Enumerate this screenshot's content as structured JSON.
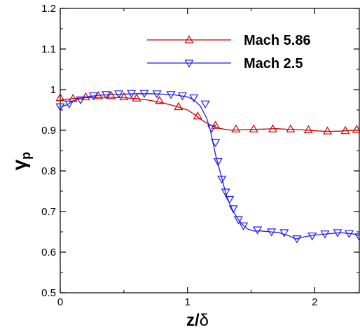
{
  "chart_data": {
    "type": "line",
    "title": "",
    "xlabel_main": "z/",
    "xlabel_symbol": "δ",
    "ylabel_main": "γ",
    "ylabel_sub": "p",
    "xlim": [
      0,
      2.35
    ],
    "ylim": [
      0.5,
      1.2
    ],
    "xticks": [
      0,
      1,
      2
    ],
    "xtick_labels": [
      "0",
      "1",
      "2"
    ],
    "yticks": [
      0.5,
      0.6,
      0.7,
      0.8,
      0.9,
      1.0,
      1.1,
      1.2
    ],
    "ytick_labels": [
      "0.5",
      "0.6",
      "0.7",
      "0.8",
      "0.9",
      "1",
      "1.1",
      "1.2"
    ],
    "grid": false,
    "legend_position": "top-right",
    "series": [
      {
        "name": "Mach 5.86",
        "color": "#cc0000",
        "marker": "triangle-up",
        "x": [
          0.0,
          0.1,
          0.2,
          0.3,
          0.4,
          0.5,
          0.6,
          0.7,
          0.8,
          0.9,
          1.0,
          1.05,
          1.1,
          1.15,
          1.2,
          1.25,
          1.3,
          1.35,
          1.4,
          1.5,
          1.6,
          1.7,
          1.8,
          1.9,
          2.0,
          2.1,
          2.2,
          2.3,
          2.35
        ],
        "y": [
          0.975,
          0.978,
          0.98,
          0.981,
          0.981,
          0.98,
          0.978,
          0.974,
          0.968,
          0.96,
          0.95,
          0.94,
          0.928,
          0.918,
          0.91,
          0.905,
          0.902,
          0.9,
          0.901,
          0.902,
          0.903,
          0.904,
          0.902,
          0.901,
          0.899,
          0.897,
          0.898,
          0.9,
          0.901
        ],
        "markers_x": [
          0.0,
          0.1,
          0.2,
          0.3,
          0.4,
          0.5,
          0.6,
          0.78,
          0.93,
          1.08,
          1.22,
          1.38,
          1.52,
          1.67,
          1.81,
          1.95,
          2.1,
          2.24,
          2.33
        ],
        "markers_y": [
          0.98,
          0.978,
          0.982,
          0.985,
          0.985,
          0.982,
          0.979,
          0.973,
          0.958,
          0.935,
          0.912,
          0.903,
          0.903,
          0.903,
          0.903,
          0.901,
          0.898,
          0.899,
          0.902
        ]
      },
      {
        "name": "Mach 2.5",
        "color": "#1f1fe6",
        "marker": "triangle-down",
        "x": [
          0.0,
          0.05,
          0.1,
          0.2,
          0.3,
          0.4,
          0.5,
          0.6,
          0.7,
          0.8,
          0.9,
          1.0,
          1.05,
          1.1,
          1.15,
          1.18,
          1.2,
          1.22,
          1.25,
          1.28,
          1.3,
          1.33,
          1.36,
          1.4,
          1.44,
          1.48,
          1.52,
          1.58,
          1.65,
          1.72,
          1.8,
          1.85,
          1.92,
          2.0,
          2.1,
          2.2,
          2.3,
          2.35
        ],
        "y": [
          0.958,
          0.962,
          0.972,
          0.982,
          0.986,
          0.988,
          0.989,
          0.99,
          0.99,
          0.989,
          0.987,
          0.982,
          0.975,
          0.96,
          0.93,
          0.9,
          0.87,
          0.84,
          0.805,
          0.77,
          0.745,
          0.72,
          0.7,
          0.68,
          0.665,
          0.656,
          0.652,
          0.652,
          0.65,
          0.648,
          0.64,
          0.632,
          0.638,
          0.642,
          0.645,
          0.648,
          0.645,
          0.64
        ],
        "markers_x": [
          0.0,
          0.07,
          0.16,
          0.26,
          0.36,
          0.46,
          0.56,
          0.66,
          0.76,
          0.87,
          0.96,
          1.05,
          1.14,
          1.19,
          1.22,
          1.24,
          1.27,
          1.3,
          1.33,
          1.36,
          1.4,
          1.44,
          1.55,
          1.66,
          1.76,
          1.86,
          1.98,
          2.08,
          2.18,
          2.27,
          2.35
        ],
        "markers_y": [
          0.958,
          0.965,
          0.975,
          0.985,
          0.988,
          0.99,
          0.991,
          0.991,
          0.99,
          0.988,
          0.985,
          0.98,
          0.965,
          0.905,
          0.87,
          0.823,
          0.78,
          0.748,
          0.73,
          0.707,
          0.68,
          0.665,
          0.655,
          0.65,
          0.648,
          0.633,
          0.64,
          0.645,
          0.648,
          0.646,
          0.638
        ]
      }
    ]
  }
}
